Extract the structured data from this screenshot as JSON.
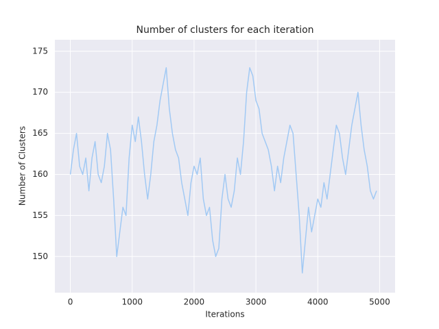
{
  "chart_data": {
    "type": "line",
    "title": "Number of clusters for each iteration",
    "xlabel": "Iterations",
    "ylabel": "Number of Clusters",
    "x": [
      0,
      50,
      100,
      150,
      200,
      250,
      300,
      350,
      400,
      450,
      500,
      550,
      600,
      650,
      700,
      750,
      800,
      850,
      900,
      950,
      1000,
      1050,
      1100,
      1150,
      1200,
      1250,
      1300,
      1350,
      1400,
      1450,
      1500,
      1550,
      1600,
      1650,
      1700,
      1750,
      1800,
      1850,
      1900,
      1950,
      2000,
      2050,
      2100,
      2150,
      2200,
      2250,
      2300,
      2350,
      2400,
      2450,
      2500,
      2550,
      2600,
      2650,
      2700,
      2750,
      2800,
      2850,
      2900,
      2950,
      3000,
      3050,
      3100,
      3150,
      3200,
      3250,
      3300,
      3350,
      3400,
      3450,
      3500,
      3550,
      3600,
      3650,
      3700,
      3750,
      3800,
      3850,
      3900,
      3950,
      4000,
      4050,
      4100,
      4150,
      4200,
      4250,
      4300,
      4350,
      4400,
      4450,
      4500,
      4550,
      4600,
      4650,
      4700,
      4750,
      4800,
      4850,
      4900,
      4950
    ],
    "values": [
      160,
      163,
      165,
      161,
      160,
      162,
      158,
      162,
      164,
      160,
      159,
      161,
      165,
      163,
      157,
      150,
      153,
      156,
      155,
      162,
      166,
      164,
      167,
      164,
      160,
      157,
      160,
      164,
      166,
      169,
      171,
      173,
      168,
      165,
      163,
      162,
      159,
      157,
      155,
      159,
      161,
      160,
      162,
      157,
      155,
      156,
      152,
      150,
      151,
      157,
      160,
      157,
      156,
      158,
      162,
      160,
      164,
      170,
      173,
      172,
      169,
      168,
      165,
      164,
      163,
      161,
      158,
      161,
      159,
      162,
      164,
      166,
      165,
      160,
      155,
      148,
      152,
      156,
      153,
      155,
      157,
      156,
      159,
      157,
      160,
      163,
      166,
      165,
      162,
      160,
      163,
      166,
      168,
      170,
      166,
      163,
      161,
      158,
      157,
      158
    ],
    "color": "#a1c9f4",
    "xlim": [
      -250,
      5250
    ],
    "ylim": [
      145.6,
      176.4
    ],
    "xticks": [
      0,
      1000,
      2000,
      3000,
      4000,
      5000
    ],
    "yticks": [
      150,
      155,
      160,
      165,
      170,
      175
    ],
    "grid": true
  }
}
